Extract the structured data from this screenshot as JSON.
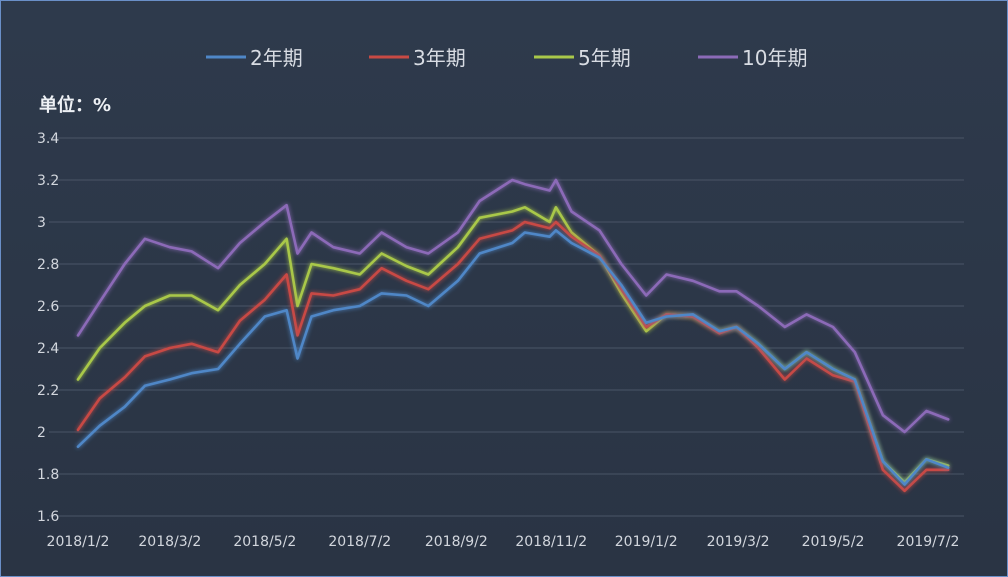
{
  "chart_data": {
    "type": "line",
    "unit_label": "单位：%",
    "x_tick_labels": [
      "2018/1/2",
      "2018/3/2",
      "2018/5/2",
      "2018/7/2",
      "2018/9/2",
      "2018/11/2",
      "2019/1/2",
      "2019/3/2",
      "2019/5/2",
      "2019/7/2"
    ],
    "y_ticks": [
      1.6,
      1.8,
      2,
      2.2,
      2.4,
      2.6,
      2.8,
      3,
      3.2,
      3.4
    ],
    "y_tick_labels": [
      "1.6",
      "1.8",
      "2",
      "2.2",
      "2.4",
      "2.6",
      "2.8",
      "3",
      "3.2",
      "3.4"
    ],
    "ylim": [
      1.6,
      3.4
    ],
    "grid": true,
    "legend_position": "top",
    "x": [
      "2018/1/2",
      "2018/1/16",
      "2018/2/1",
      "2018/2/14",
      "2018/3/2",
      "2018/3/16",
      "2018/4/2",
      "2018/4/16",
      "2018/5/2",
      "2018/5/16",
      "2018/5/23",
      "2018/6/1",
      "2018/6/15",
      "2018/7/2",
      "2018/7/16",
      "2018/8/1",
      "2018/8/15",
      "2018/9/3",
      "2018/9/17",
      "2018/10/8",
      "2018/10/16",
      "2018/11/1",
      "2018/11/5",
      "2018/11/15",
      "2018/12/3",
      "2018/12/17",
      "2019/1/2",
      "2019/1/15",
      "2019/2/1",
      "2019/2/18",
      "2019/3/1",
      "2019/3/15",
      "2019/4/1",
      "2019/4/15",
      "2019/5/2",
      "2019/5/16",
      "2019/6/3",
      "2019/6/17",
      "2019/7/1",
      "2019/7/15"
    ],
    "series": [
      {
        "name": "2年期",
        "color": "#4f87c7",
        "values": [
          1.93,
          2.03,
          2.12,
          2.22,
          2.25,
          2.28,
          2.3,
          2.42,
          2.55,
          2.58,
          2.35,
          2.55,
          2.58,
          2.6,
          2.66,
          2.65,
          2.6,
          2.72,
          2.85,
          2.9,
          2.95,
          2.93,
          2.96,
          2.9,
          2.83,
          2.7,
          2.52,
          2.55,
          2.56,
          2.48,
          2.5,
          2.42,
          2.3,
          2.38,
          2.3,
          2.25,
          1.86,
          1.75,
          1.87,
          1.83
        ]
      },
      {
        "name": "3年期",
        "color": "#c84a44",
        "values": [
          2.01,
          2.16,
          2.26,
          2.36,
          2.4,
          2.42,
          2.38,
          2.53,
          2.63,
          2.75,
          2.46,
          2.66,
          2.65,
          2.68,
          2.78,
          2.72,
          2.68,
          2.8,
          2.92,
          2.96,
          3.0,
          2.97,
          3.0,
          2.93,
          2.84,
          2.68,
          2.5,
          2.56,
          2.55,
          2.47,
          2.5,
          2.4,
          2.25,
          2.35,
          2.27,
          2.24,
          1.82,
          1.72,
          1.82,
          1.82
        ]
      },
      {
        "name": "5年期",
        "color": "#a9c84a",
        "values": [
          2.25,
          2.4,
          2.52,
          2.6,
          2.65,
          2.65,
          2.58,
          2.7,
          2.8,
          2.92,
          2.6,
          2.8,
          2.78,
          2.75,
          2.85,
          2.79,
          2.75,
          2.88,
          3.02,
          3.05,
          3.07,
          3.0,
          3.07,
          2.95,
          2.84,
          2.66,
          2.48,
          2.56,
          2.55,
          2.48,
          2.5,
          2.42,
          2.3,
          2.38,
          2.3,
          2.25,
          1.86,
          1.76,
          1.87,
          1.84
        ]
      },
      {
        "name": "10年期",
        "color": "#8c6bb8",
        "values": [
          2.46,
          2.62,
          2.8,
          2.92,
          2.88,
          2.86,
          2.78,
          2.9,
          3.0,
          3.08,
          2.85,
          2.95,
          2.88,
          2.85,
          2.95,
          2.88,
          2.85,
          2.95,
          3.1,
          3.2,
          3.18,
          3.15,
          3.2,
          3.05,
          2.96,
          2.8,
          2.65,
          2.75,
          2.72,
          2.67,
          2.67,
          2.6,
          2.5,
          2.56,
          2.5,
          2.38,
          2.08,
          2.0,
          2.1,
          2.06
        ]
      }
    ]
  }
}
